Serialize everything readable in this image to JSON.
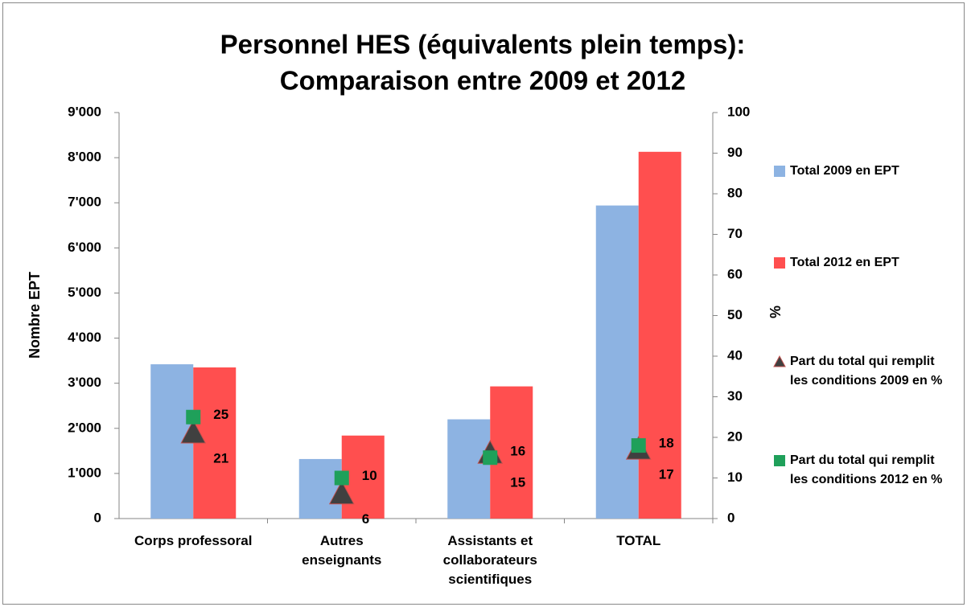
{
  "chart_data": {
    "type": "bar",
    "title": [
      "Personnel HES (équivalents plein temps):",
      "Comparaison entre 2009 et 2012"
    ],
    "y_label": "Nombre EPT",
    "y2_label": "%",
    "categories": [
      "Corps professoral",
      "Autres enseignants",
      "Assistants et collaborateurs scientifiques",
      "TOTAL"
    ],
    "series": [
      {
        "name": "Total 2009 en EPT",
        "type": "bar",
        "color": "#8db3e2",
        "values": [
          3420,
          1320,
          2200,
          6940
        ]
      },
      {
        "name": "Total 2012 en EPT",
        "type": "bar",
        "color": "#ff4f4f",
        "values": [
          3350,
          1840,
          2930,
          8130
        ]
      },
      {
        "name": "Part du total qui remplit les conditions 2009 en %",
        "type": "triangle",
        "axis": "y2",
        "color": "#404040",
        "values": [
          21,
          6,
          16,
          17
        ]
      },
      {
        "name": "Part du total qui remplit les conditions 2012 en %",
        "type": "square",
        "axis": "y2",
        "color": "#1fa05a",
        "values": [
          25,
          10,
          15,
          18
        ]
      }
    ],
    "ylim": [
      0,
      9000
    ],
    "yticks": [
      {
        "value": 0,
        "label": "0"
      },
      {
        "value": 1000,
        "label": "1'000"
      },
      {
        "value": 2000,
        "label": "2'000"
      },
      {
        "value": 3000,
        "label": "3'000"
      },
      {
        "value": 4000,
        "label": "4'000"
      },
      {
        "value": 5000,
        "label": "5'000"
      },
      {
        "value": 6000,
        "label": "6'000"
      },
      {
        "value": 7000,
        "label": "7'000"
      },
      {
        "value": 8000,
        "label": "8'000"
      },
      {
        "value": 9000,
        "label": "9'000"
      }
    ],
    "y2lim": [
      0,
      100
    ],
    "y2ticks": [
      0,
      10,
      20,
      30,
      40,
      50,
      60,
      70,
      80,
      90,
      100
    ],
    "legend": "right"
  }
}
